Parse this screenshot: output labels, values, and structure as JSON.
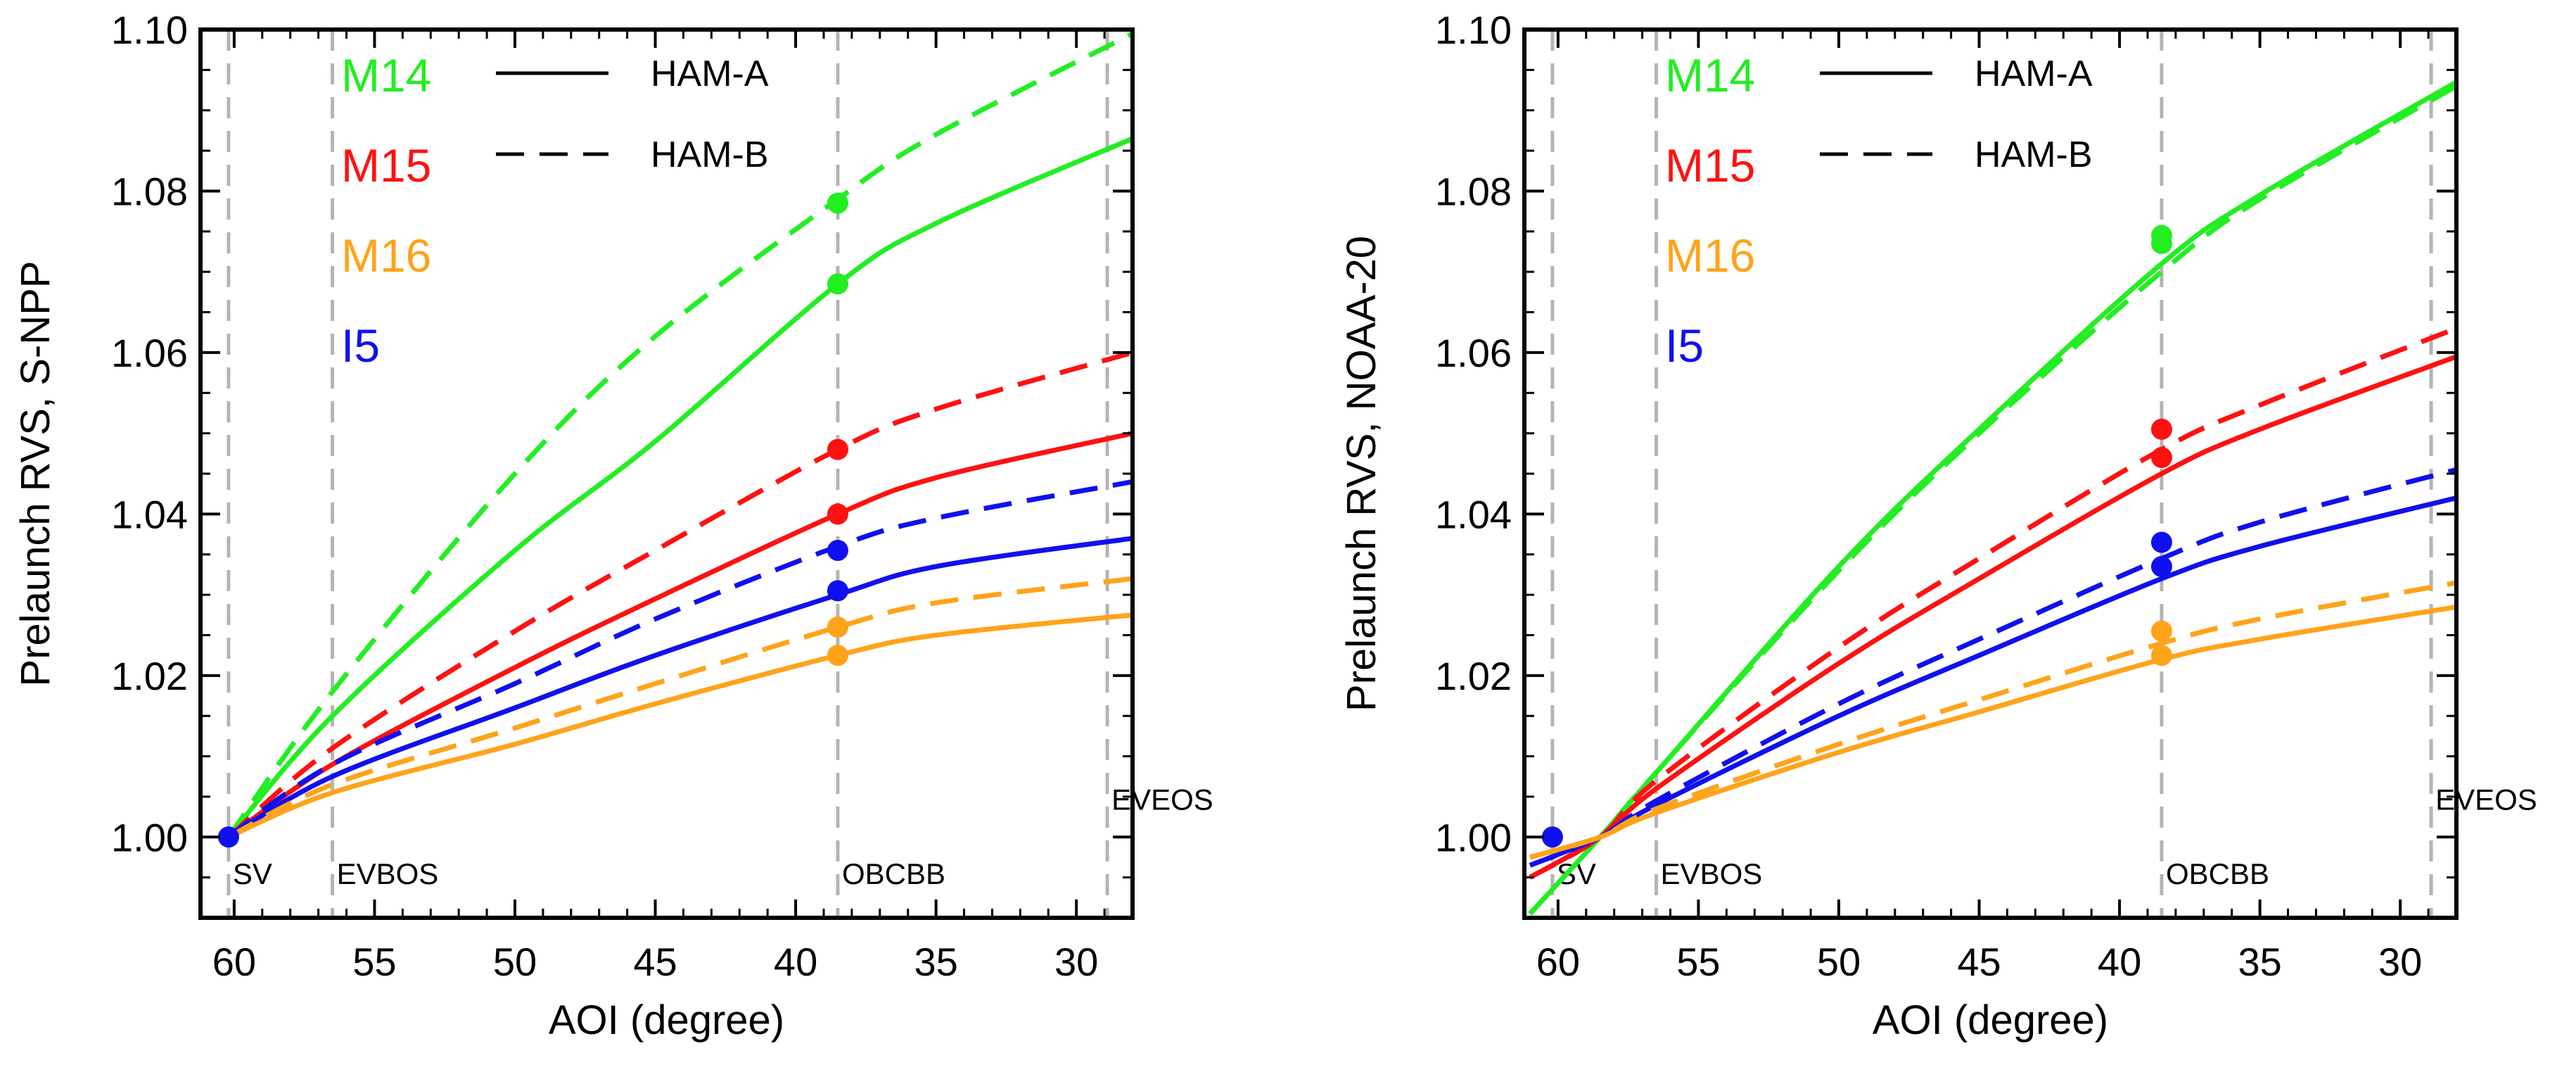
{
  "chart_data": [
    {
      "type": "line",
      "panel": "left",
      "xlabel": "AOI (degree)",
      "ylabel": "Prelaunch RVS, S-NPP",
      "xlim": [
        61.2,
        28.0
      ],
      "ylim": [
        0.99,
        1.1
      ],
      "xticks": [
        60,
        55,
        50,
        45,
        40,
        35,
        30
      ],
      "yticks": [
        {
          "value": 1.0,
          "label": "1.00"
        },
        {
          "value": 1.02,
          "label": "1.02"
        },
        {
          "value": 1.04,
          "label": "1.04"
        },
        {
          "value": 1.06,
          "label": "1.06"
        },
        {
          "value": 1.08,
          "label": "1.08"
        },
        {
          "value": 1.1,
          "label": "1.10"
        }
      ],
      "reference_lines": [
        {
          "label": "SV",
          "aoi": 60.2,
          "label_pos": "bottom"
        },
        {
          "label": "EVBOS",
          "aoi": 56.5,
          "label_pos": "bottom"
        },
        {
          "label": "OBCBB",
          "aoi": 38.5,
          "label_pos": "bottom"
        },
        {
          "label": "EVEOS",
          "aoi": 28.9,
          "label_pos": "upper"
        }
      ],
      "legend_bands": [
        {
          "label": "M14",
          "color": "#22ee22"
        },
        {
          "label": "M15",
          "color": "#ff1111"
        },
        {
          "label": "M16",
          "color": "#ffa31a"
        },
        {
          "label": "I5",
          "color": "#1010ee"
        }
      ],
      "legend_styles": [
        {
          "label": "HAM-A",
          "dash": "solid"
        },
        {
          "label": "HAM-B",
          "dash": "dashed"
        }
      ],
      "series": [
        {
          "band": "M14",
          "ham": "HAM-A",
          "color": "#22ee22",
          "dash": "solid",
          "x": [
            60.2,
            56.5,
            50,
            45,
            38.5,
            35,
            28
          ],
          "y": [
            1.0,
            1.015,
            1.0355,
            1.049,
            1.0685,
            1.076,
            1.0865
          ]
        },
        {
          "band": "M14",
          "ham": "HAM-B",
          "color": "#22ee22",
          "dash": "dashed",
          "x": [
            60.2,
            56.5,
            50,
            45,
            38.5,
            35,
            28
          ],
          "y": [
            1.0,
            1.018,
            1.045,
            1.062,
            1.079,
            1.087,
            1.0995
          ]
        },
        {
          "band": "M15",
          "ham": "HAM-A",
          "color": "#ff1111",
          "dash": "solid",
          "x": [
            60.2,
            56.5,
            50,
            45,
            38.5,
            35,
            28
          ],
          "y": [
            1.0,
            1.009,
            1.021,
            1.0295,
            1.04,
            1.0445,
            1.05
          ]
        },
        {
          "band": "M15",
          "ham": "HAM-B",
          "color": "#ff1111",
          "dash": "dashed",
          "x": [
            60.2,
            56.5,
            50,
            45,
            38.5,
            35,
            28
          ],
          "y": [
            1.0,
            1.011,
            1.0255,
            1.0355,
            1.048,
            1.053,
            1.06
          ]
        },
        {
          "band": "I5",
          "ham": "HAM-A",
          "color": "#1010ee",
          "dash": "solid",
          "x": [
            60.2,
            56.5,
            50,
            45,
            38.5,
            35,
            28
          ],
          "y": [
            1.0,
            1.0075,
            1.016,
            1.0225,
            1.03,
            1.0335,
            1.037
          ]
        },
        {
          "band": "I5",
          "ham": "HAM-B",
          "color": "#1010ee",
          "dash": "dashed",
          "x": [
            60.2,
            56.5,
            50,
            45,
            38.5,
            35,
            28
          ],
          "y": [
            1.0,
            1.009,
            1.019,
            1.027,
            1.036,
            1.0395,
            1.044
          ]
        },
        {
          "band": "M16",
          "ham": "HAM-A",
          "color": "#ffa31a",
          "dash": "solid",
          "x": [
            60.2,
            56.5,
            50,
            45,
            38.5,
            35,
            28
          ],
          "y": [
            1.0,
            1.0055,
            1.0115,
            1.0165,
            1.0225,
            1.025,
            1.0275
          ]
        },
        {
          "band": "M16",
          "ham": "HAM-B",
          "color": "#ffa31a",
          "dash": "dashed",
          "x": [
            60.2,
            56.5,
            50,
            45,
            38.5,
            35,
            28
          ],
          "y": [
            1.0,
            1.0065,
            1.0135,
            1.019,
            1.026,
            1.029,
            1.032
          ]
        }
      ],
      "points": [
        {
          "band": "M14",
          "x": 38.5,
          "y": 1.0785,
          "color": "#22ee22"
        },
        {
          "band": "M14",
          "x": 38.5,
          "y": 1.0685,
          "color": "#22ee22"
        },
        {
          "band": "M15",
          "x": 38.5,
          "y": 1.048,
          "color": "#ff1111"
        },
        {
          "band": "M15",
          "x": 38.5,
          "y": 1.04,
          "color": "#ff1111"
        },
        {
          "band": "I5",
          "x": 38.5,
          "y": 1.0355,
          "color": "#1010ee"
        },
        {
          "band": "I5",
          "x": 38.5,
          "y": 1.0305,
          "color": "#1010ee"
        },
        {
          "band": "M16",
          "x": 38.5,
          "y": 1.026,
          "color": "#ffa31a"
        },
        {
          "band": "M16",
          "x": 38.5,
          "y": 1.0225,
          "color": "#ffa31a"
        },
        {
          "band": "I5",
          "x": 60.2,
          "y": 1.0,
          "color": "#1010ee"
        }
      ]
    },
    {
      "type": "line",
      "panel": "right",
      "xlabel": "AOI (degree)",
      "ylabel": "Prelaunch RVS, NOAA-20",
      "xlim": [
        61.2,
        28.0
      ],
      "ylim": [
        0.99,
        1.1
      ],
      "xticks": [
        60,
        55,
        50,
        45,
        40,
        35,
        30
      ],
      "yticks": [
        {
          "value": 1.0,
          "label": "1.00"
        },
        {
          "value": 1.02,
          "label": "1.02"
        },
        {
          "value": 1.04,
          "label": "1.04"
        },
        {
          "value": 1.06,
          "label": "1.06"
        },
        {
          "value": 1.08,
          "label": "1.08"
        },
        {
          "value": 1.1,
          "label": "1.10"
        }
      ],
      "reference_lines": [
        {
          "label": "SV",
          "aoi": 60.2,
          "label_pos": "bottom"
        },
        {
          "label": "EVBOS",
          "aoi": 56.5,
          "label_pos": "bottom"
        },
        {
          "label": "OBCBB",
          "aoi": 38.5,
          "label_pos": "bottom"
        },
        {
          "label": "EVEOS",
          "aoi": 28.9,
          "label_pos": "upper"
        }
      ],
      "legend_bands": [
        {
          "label": "M14",
          "color": "#22ee22"
        },
        {
          "label": "M15",
          "color": "#ff1111"
        },
        {
          "label": "M16",
          "color": "#ffa31a"
        },
        {
          "label": "I5",
          "color": "#1010ee"
        }
      ],
      "legend_styles": [
        {
          "label": "HAM-A",
          "dash": "solid"
        },
        {
          "label": "HAM-B",
          "dash": "dashed"
        }
      ],
      "series": [
        {
          "band": "M14",
          "ham": "HAM-A",
          "color": "#22ee22",
          "dash": "solid",
          "x": [
            61.0,
            58.5,
            56.5,
            50,
            45,
            38.5,
            35,
            28
          ],
          "y": [
            0.9905,
            1.0,
            1.008,
            1.0335,
            1.0505,
            1.071,
            1.0795,
            1.0935
          ]
        },
        {
          "band": "M14",
          "ham": "HAM-B",
          "color": "#22ee22",
          "dash": "dashed",
          "x": [
            61.0,
            58.5,
            56.5,
            50,
            45,
            38.5,
            35,
            28
          ],
          "y": [
            0.9905,
            1.0,
            1.008,
            1.033,
            1.05,
            1.07,
            1.079,
            1.093
          ]
        },
        {
          "band": "M15",
          "ham": "HAM-A",
          "color": "#ff1111",
          "dash": "solid",
          "x": [
            61.0,
            58.5,
            56.5,
            50,
            45,
            38.5,
            35,
            28
          ],
          "y": [
            0.995,
            1.0,
            1.006,
            1.0215,
            1.032,
            1.045,
            1.0505,
            1.0595
          ]
        },
        {
          "band": "M15",
          "ham": "HAM-B",
          "color": "#ff1111",
          "dash": "dashed",
          "x": [
            61.0,
            58.5,
            56.5,
            50,
            45,
            38.5,
            35,
            28
          ],
          "y": [
            0.995,
            1.0,
            1.007,
            1.0235,
            1.0345,
            1.048,
            1.0535,
            1.063
          ]
        },
        {
          "band": "I5",
          "ham": "HAM-A",
          "color": "#1010ee",
          "dash": "solid",
          "x": [
            61.0,
            58.5,
            56.5,
            50,
            45,
            38.5,
            35,
            28
          ],
          "y": [
            0.9965,
            1.0,
            1.004,
            1.015,
            1.0225,
            1.032,
            1.036,
            1.042
          ]
        },
        {
          "band": "I5",
          "ham": "HAM-B",
          "color": "#1010ee",
          "dash": "dashed",
          "x": [
            61.0,
            58.5,
            56.5,
            50,
            45,
            38.5,
            35,
            28
          ],
          "y": [
            0.9965,
            1.0,
            1.0045,
            1.0165,
            1.0245,
            1.0345,
            1.039,
            1.0455
          ]
        },
        {
          "band": "M16",
          "ham": "HAM-A",
          "color": "#ffa31a",
          "dash": "solid",
          "x": [
            61.0,
            58.5,
            56.5,
            50,
            45,
            38.5,
            35,
            28
          ],
          "y": [
            0.9975,
            1.0,
            1.003,
            1.0105,
            1.0155,
            1.022,
            1.0245,
            1.0285
          ]
        },
        {
          "band": "M16",
          "ham": "HAM-B",
          "color": "#ffa31a",
          "dash": "dashed",
          "x": [
            61.0,
            58.5,
            56.5,
            50,
            45,
            38.5,
            35,
            28
          ],
          "y": [
            0.9975,
            1.0,
            1.0035,
            1.0115,
            1.017,
            1.024,
            1.027,
            1.0315
          ]
        }
      ],
      "points": [
        {
          "band": "M14",
          "x": 38.5,
          "y": 1.0745,
          "color": "#22ee22"
        },
        {
          "band": "M14",
          "x": 38.5,
          "y": 1.0735,
          "color": "#22ee22"
        },
        {
          "band": "M15",
          "x": 38.5,
          "y": 1.0505,
          "color": "#ff1111"
        },
        {
          "band": "M15",
          "x": 38.5,
          "y": 1.047,
          "color": "#ff1111"
        },
        {
          "band": "I5",
          "x": 38.5,
          "y": 1.0365,
          "color": "#1010ee"
        },
        {
          "band": "I5",
          "x": 38.5,
          "y": 1.0335,
          "color": "#1010ee"
        },
        {
          "band": "M16",
          "x": 38.5,
          "y": 1.0255,
          "color": "#ffa31a"
        },
        {
          "band": "M16",
          "x": 38.5,
          "y": 1.0225,
          "color": "#ffa31a"
        },
        {
          "band": "I5",
          "x": 60.2,
          "y": 1.0,
          "color": "#1010ee"
        }
      ]
    }
  ]
}
